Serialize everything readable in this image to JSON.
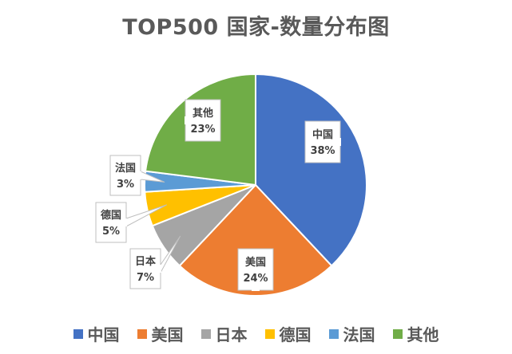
{
  "chart_data": {
    "type": "pie",
    "title": "TOP500 国家-数量分布图",
    "legend_position": "bottom",
    "slices": [
      {
        "label": "中国",
        "value": 38,
        "value_label": "38%",
        "color": "#4472C4"
      },
      {
        "label": "美国",
        "value": 24,
        "value_label": "24%",
        "color": "#ED7D31"
      },
      {
        "label": "日本",
        "value": 7,
        "value_label": "7%",
        "color": "#A5A5A5"
      },
      {
        "label": "德国",
        "value": 5,
        "value_label": "5%",
        "color": "#FFC000"
      },
      {
        "label": "法国",
        "value": 3,
        "value_label": "3%",
        "color": "#5B9BD5"
      },
      {
        "label": "其他",
        "value": 23,
        "value_label": "23%",
        "color": "#70AD47"
      }
    ]
  }
}
